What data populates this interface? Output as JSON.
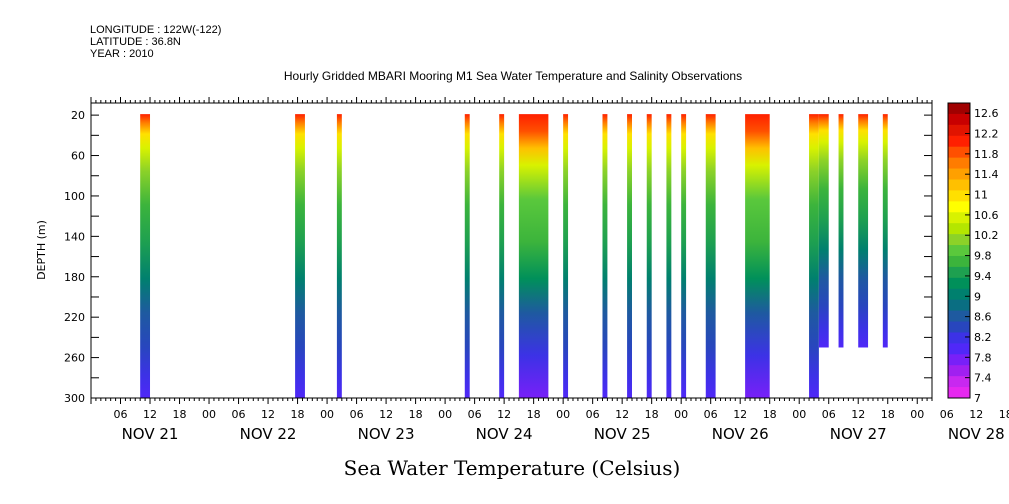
{
  "header": {
    "longitude": "LONGITUDE : 122W(-122)",
    "latitude": "LATITUDE : 36.8N",
    "year": "YEAR : 2010"
  },
  "chart_data": {
    "type": "heatmap",
    "title": "Hourly Gridded MBARI Mooring M1 Sea Water Temperature and Salinity Observations",
    "xlabel": "Sea Water Temperature (Celsius)",
    "ylabel": "DEPTH (m)",
    "y_ticks": [
      20,
      60,
      100,
      140,
      180,
      220,
      260,
      300
    ],
    "ylim": [
      300,
      8
    ],
    "x_hour_ticks": [
      "06",
      "12",
      "18",
      "00",
      "06",
      "12",
      "18",
      "00",
      "06",
      "12",
      "18",
      "00",
      "06",
      "12",
      "18",
      "00",
      "06",
      "12",
      "18",
      "00",
      "06",
      "12",
      "18",
      "00",
      "06",
      "12",
      "18",
      "00",
      "06",
      "12",
      "18",
      "00"
    ],
    "x_day_labels": [
      "NOV 21",
      "NOV 22",
      "NOV 23",
      "NOV 24",
      "NOV 25",
      "NOV 26",
      "NOV 27",
      "NOV 28"
    ],
    "x_range_hours": [
      0,
      171
    ],
    "colorbar": {
      "labels": [
        "12.6",
        "12.2",
        "11.8",
        "11.4",
        "11",
        "10.6",
        "10.2",
        "9.8",
        "9.4",
        "9",
        "8.6",
        "8.2",
        "7.8",
        "7.4",
        "7"
      ],
      "range": [
        7,
        12.8
      ],
      "levels": [
        "#a00000",
        "#c80000",
        "#e11400",
        "#ff2000",
        "#ff5000",
        "#ff7c00",
        "#ffa000",
        "#ffc000",
        "#ffe000",
        "#ffff00",
        "#d8f200",
        "#b4e600",
        "#8cd228",
        "#5ac83c",
        "#3cb43c",
        "#1ea050",
        "#00905a",
        "#00806e",
        "#0a6e82",
        "#1e5aa0",
        "#2846be",
        "#3c32e6",
        "#5028f8",
        "#7820f8",
        "#a020f0",
        "#c828f0",
        "#e628f0"
      ]
    },
    "columns": [
      {
        "start": 10.0,
        "end": 12.0,
        "bottom": 300,
        "surface_temp": 12.0
      },
      {
        "start": 41.5,
        "end": 43.5,
        "bottom": 300,
        "surface_temp": 12.0
      },
      {
        "start": 50.0,
        "end": 51.0,
        "bottom": 300,
        "surface_temp": 12.0
      },
      {
        "start": 76.0,
        "end": 77.0,
        "bottom": 300,
        "surface_temp": 12.0
      },
      {
        "start": 83.0,
        "end": 84.0,
        "bottom": 300,
        "surface_temp": 12.0
      },
      {
        "start": 87.0,
        "end": 93.0,
        "bottom": 300,
        "surface_temp": 12.2
      },
      {
        "start": 96.0,
        "end": 97.0,
        "bottom": 300,
        "surface_temp": 12.0
      },
      {
        "start": 104.0,
        "end": 105.0,
        "bottom": 300,
        "surface_temp": 12.0
      },
      {
        "start": 109.0,
        "end": 110.0,
        "bottom": 300,
        "surface_temp": 12.0
      },
      {
        "start": 113.0,
        "end": 114.0,
        "bottom": 300,
        "surface_temp": 12.0
      },
      {
        "start": 117.0,
        "end": 118.0,
        "bottom": 300,
        "surface_temp": 12.0
      },
      {
        "start": 120.0,
        "end": 121.0,
        "bottom": 300,
        "surface_temp": 12.0
      },
      {
        "start": 125.0,
        "end": 127.0,
        "bottom": 300,
        "surface_temp": 12.0
      },
      {
        "start": 133.0,
        "end": 138.0,
        "bottom": 300,
        "surface_temp": 12.4
      },
      {
        "start": 146.0,
        "end": 148.0,
        "bottom": 300,
        "surface_temp": 12.0
      },
      {
        "start": 148.0,
        "end": 150.0,
        "bottom": 250,
        "surface_temp": 12.0
      },
      {
        "start": 152.0,
        "end": 153.0,
        "bottom": 250,
        "surface_temp": 12.0
      },
      {
        "start": 156.0,
        "end": 158.0,
        "bottom": 250,
        "surface_temp": 12.0
      },
      {
        "start": 161.0,
        "end": 162.0,
        "bottom": 250,
        "surface_temp": 12.0
      }
    ]
  }
}
